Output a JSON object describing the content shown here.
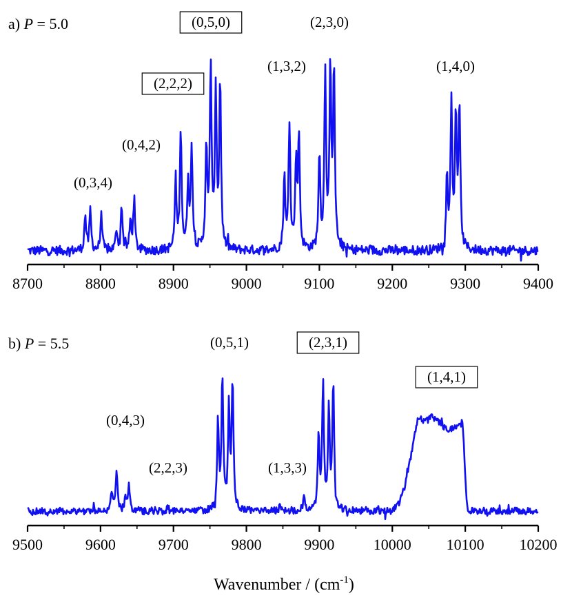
{
  "chart_data": [
    {
      "type": "line",
      "panel_label": "a)",
      "param_symbol": "P",
      "param_value": "= 5.0",
      "xlim": [
        8700,
        9400
      ],
      "xticks": [
        "8700",
        "8800",
        "8900",
        "9000",
        "9100",
        "9200",
        "9300",
        "9400"
      ],
      "annotations": [
        {
          "text": "(0,3,4)",
          "boxed": false
        },
        {
          "text": "(0,4,2)",
          "boxed": false
        },
        {
          "text": "(2,2,2)",
          "boxed": true
        },
        {
          "text": "(0,5,0)",
          "boxed": true
        },
        {
          "text": "(1,3,2)",
          "boxed": false
        },
        {
          "text": "(2,3,0)",
          "boxed": false
        },
        {
          "text": "(1,4,0)",
          "boxed": false
        }
      ],
      "peaks": [
        [
          8779,
          0.19
        ],
        [
          8786,
          0.21
        ],
        [
          8801,
          0.19
        ],
        [
          8822,
          0.11
        ],
        [
          8829,
          0.24
        ],
        [
          8841,
          0.15
        ],
        [
          8846,
          0.28
        ],
        [
          8903,
          0.37
        ],
        [
          8910,
          0.65
        ],
        [
          8920,
          0.36
        ],
        [
          8925,
          0.56
        ],
        [
          8945,
          0.55
        ],
        [
          8951,
          0.98
        ],
        [
          8958,
          0.84
        ],
        [
          8964,
          0.9
        ],
        [
          9052,
          0.39
        ],
        [
          9059,
          0.7
        ],
        [
          9068,
          0.45
        ],
        [
          9072,
          0.6
        ],
        [
          9100,
          0.51
        ],
        [
          9108,
          0.94
        ],
        [
          9115,
          0.93
        ],
        [
          9120,
          0.98
        ],
        [
          9275,
          0.38
        ],
        [
          9281,
          0.77
        ],
        [
          9287,
          0.71
        ],
        [
          9292,
          0.77
        ]
      ],
      "color": "#1010f0"
    },
    {
      "type": "line",
      "panel_label": "b)",
      "param_symbol": "P",
      "param_value": "= 5.5",
      "xlim": [
        9500,
        10200
      ],
      "xticks": [
        "9500",
        "9600",
        "9700",
        "9800",
        "9900",
        "10000",
        "10100",
        "10200"
      ],
      "annotations": [
        {
          "text": "(0,4,3)",
          "boxed": false
        },
        {
          "text": "(2,2,3)",
          "boxed": false
        },
        {
          "text": "(0,5,1)",
          "boxed": false
        },
        {
          "text": "(1,3,3)",
          "boxed": false
        },
        {
          "text": "(2,3,1)",
          "boxed": true
        },
        {
          "text": "(1,4,1)",
          "boxed": true
        }
      ],
      "peaks": [
        [
          9615,
          0.15
        ],
        [
          9622,
          0.29
        ],
        [
          9634,
          0.1
        ],
        [
          9639,
          0.2
        ],
        [
          9692,
          0.03
        ],
        [
          9761,
          0.64
        ],
        [
          9767,
          0.96
        ],
        [
          9776,
          0.72
        ],
        [
          9781,
          0.93
        ],
        [
          9825,
          0.03
        ],
        [
          9846,
          0.06
        ],
        [
          9879,
          0.11
        ],
        [
          9899,
          0.55
        ],
        [
          9905,
          0.92
        ],
        [
          9913,
          0.73
        ],
        [
          9919,
          0.91
        ]
      ],
      "broad_band": {
        "from": 10040,
        "to": 10095,
        "peak": 0.68
      },
      "color": "#1010f0"
    }
  ],
  "xlabel": "Wavenumber / (cm",
  "xlabel_sup": "-1",
  "xlabel_close": ")"
}
